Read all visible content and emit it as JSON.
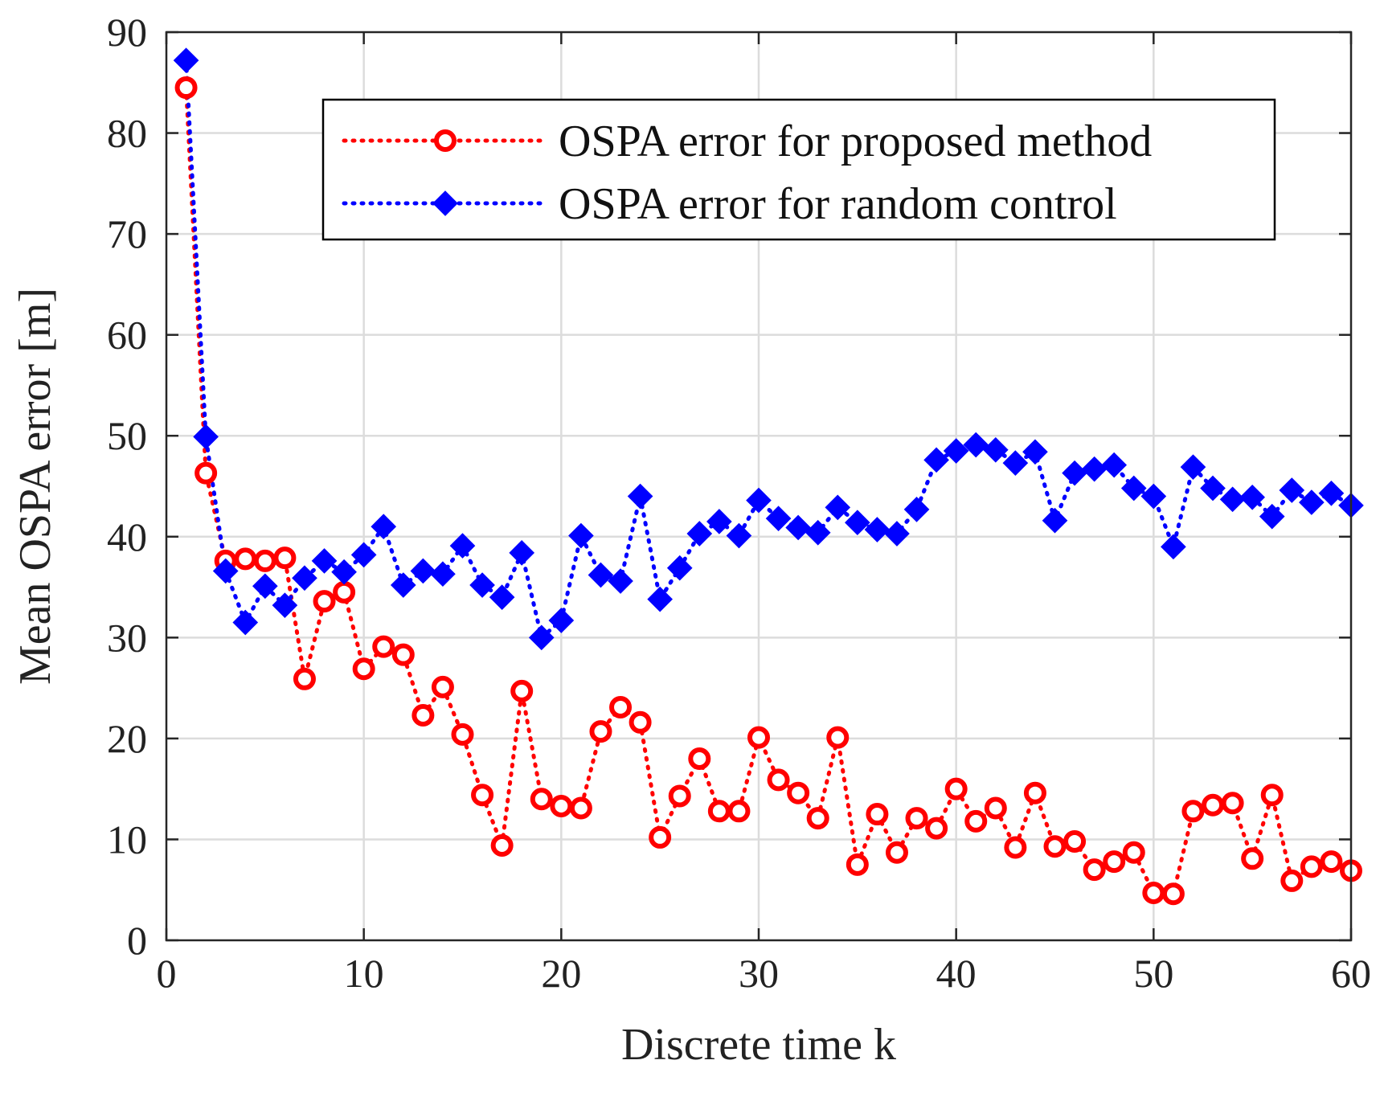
{
  "chart_data": {
    "type": "line",
    "title": "",
    "xlabel": "Discrete time k",
    "ylabel": "Mean OSPA error [m]",
    "xlim": [
      0,
      60
    ],
    "ylim": [
      0,
      90
    ],
    "xticks": [
      0,
      10,
      20,
      30,
      40,
      50,
      60
    ],
    "yticks": [
      0,
      10,
      20,
      30,
      40,
      50,
      60,
      70,
      80,
      90
    ],
    "grid": true,
    "legend_position": "top-right",
    "x": [
      1,
      2,
      3,
      4,
      5,
      6,
      7,
      8,
      9,
      10,
      11,
      12,
      13,
      14,
      15,
      16,
      17,
      18,
      19,
      20,
      21,
      22,
      23,
      24,
      25,
      26,
      27,
      28,
      29,
      30,
      31,
      32,
      33,
      34,
      35,
      36,
      37,
      38,
      39,
      40,
      41,
      42,
      43,
      44,
      45,
      46,
      47,
      48,
      49,
      50,
      51,
      52,
      53,
      54,
      55,
      56,
      57,
      58,
      59,
      60
    ],
    "series": [
      {
        "name": "OSPA error for proposed method",
        "color": "#ff0000",
        "marker": "circle",
        "line_style": "dotted",
        "values": [
          84.5,
          46.3,
          37.6,
          37.8,
          37.6,
          37.9,
          25.9,
          33.6,
          34.5,
          26.9,
          29.1,
          28.3,
          22.3,
          25.1,
          20.4,
          14.4,
          9.4,
          24.7,
          14.0,
          13.3,
          13.1,
          20.7,
          23.1,
          21.6,
          10.2,
          14.3,
          18.0,
          12.8,
          12.8,
          20.1,
          15.9,
          14.6,
          12.1,
          20.1,
          7.5,
          12.5,
          8.7,
          12.1,
          11.1,
          15.0,
          11.8,
          13.1,
          9.2,
          14.6,
          9.3,
          9.8,
          7.0,
          7.8,
          8.7,
          4.7,
          4.6,
          12.8,
          13.4,
          13.6,
          8.1,
          14.4,
          5.9,
          7.3,
          7.8,
          6.9
        ]
      },
      {
        "name": "OSPA error for random control",
        "color": "#0000ff",
        "marker": "diamond",
        "line_style": "dotted",
        "values": [
          87.2,
          49.9,
          36.6,
          31.5,
          35.1,
          33.2,
          35.9,
          37.6,
          36.5,
          38.2,
          41.0,
          35.2,
          36.6,
          36.3,
          39.1,
          35.2,
          34.0,
          38.4,
          30.0,
          31.7,
          40.1,
          36.2,
          35.6,
          44.0,
          33.8,
          36.9,
          40.3,
          41.5,
          40.1,
          43.6,
          41.8,
          40.9,
          40.4,
          42.9,
          41.4,
          40.7,
          40.3,
          42.7,
          47.6,
          48.5,
          49.1,
          48.6,
          47.3,
          48.4,
          41.6,
          46.3,
          46.7,
          47.1,
          44.8,
          44.0,
          39.0,
          46.9,
          44.8,
          43.7,
          43.9,
          42.0,
          44.6,
          43.4,
          44.3,
          43.1
        ]
      }
    ]
  }
}
